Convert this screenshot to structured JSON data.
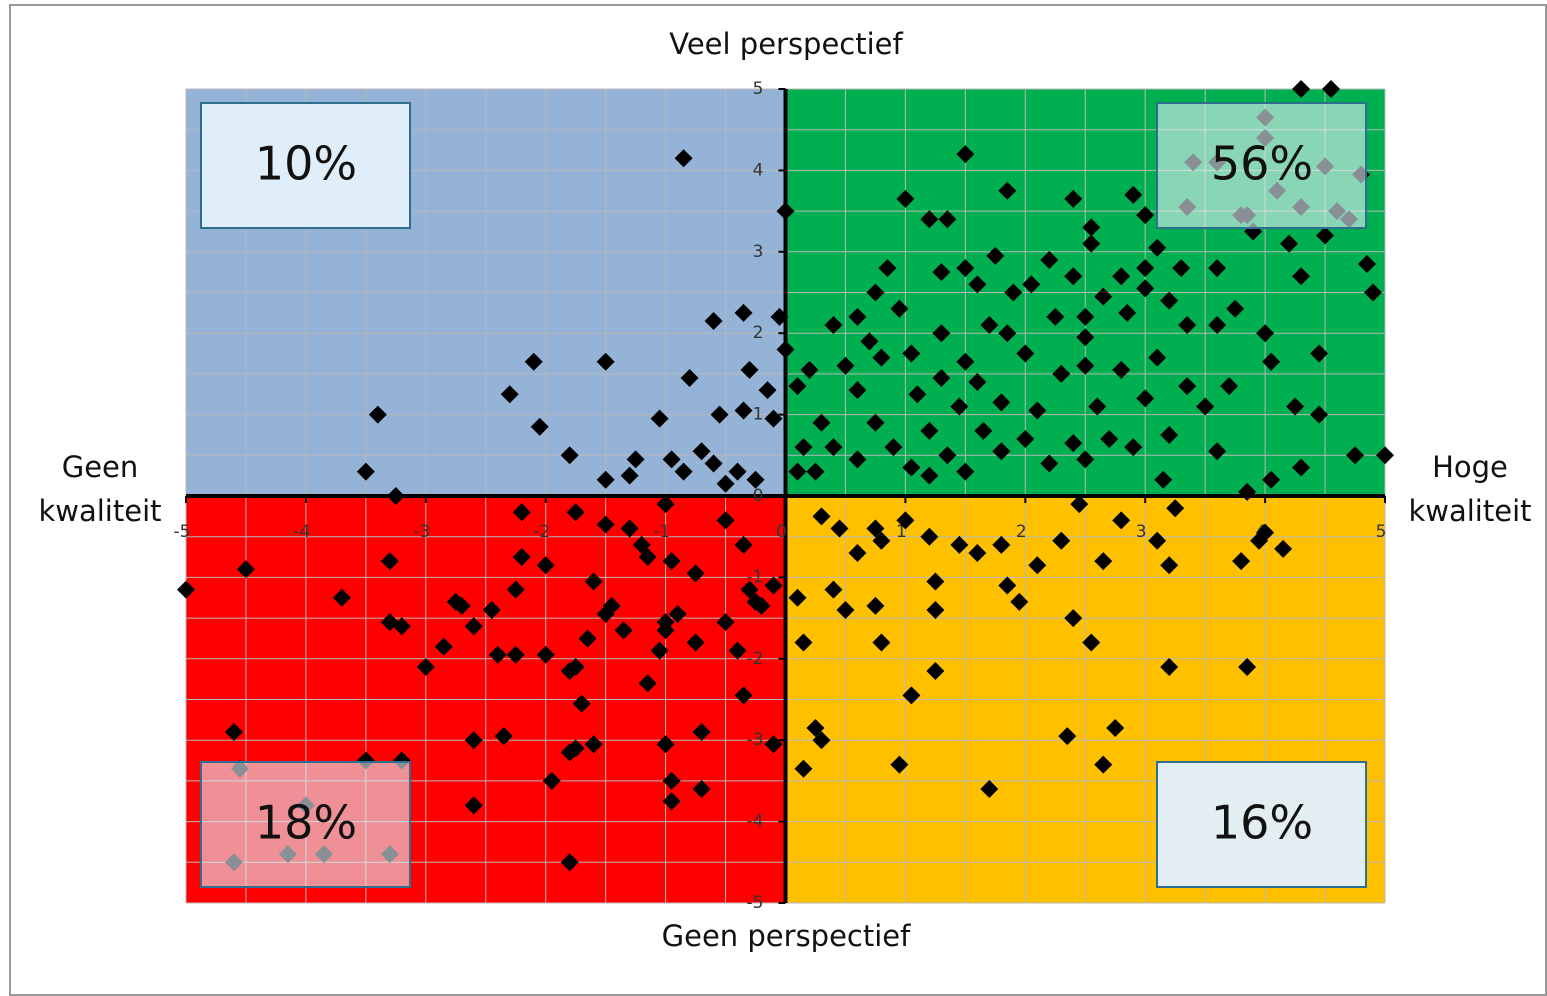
{
  "chart_data": {
    "type": "scatter",
    "top_label": "Veel perspectief",
    "bottom_label": "Geen perspectief",
    "left_label": [
      "Geen",
      "kwaliteit"
    ],
    "right_label": [
      "Hoge",
      "kwaliteit"
    ],
    "quadrant_labels": {
      "top_left": "10%",
      "top_right": "56%",
      "bottom_left": "18%",
      "bottom_right": "16%"
    },
    "quadrant_colors": {
      "top_left": "#95b3d7",
      "top_right": "#00b050",
      "bottom_left": "#ff0000",
      "bottom_right": "#ffc000"
    },
    "color": "#000000",
    "grid": true,
    "xlim": [
      -5,
      5
    ],
    "ylim": [
      -5,
      5
    ],
    "xticks": [
      -5,
      -4,
      -3,
      -2,
      -1,
      0,
      1,
      2,
      3,
      4,
      5
    ],
    "yticks": [
      -5,
      -4,
      -3,
      -2,
      -1,
      0,
      1,
      2,
      3,
      4,
      5
    ],
    "x": [
      -0.85,
      -1.5,
      -2.1,
      -2.3,
      -2.05,
      -1.8,
      -3.4,
      -3.5,
      -3.25,
      -0.8,
      -0.6,
      -0.35,
      -0.3,
      -0.55,
      -1.05,
      -0.7,
      -0.95,
      -1.25,
      -1.5,
      -0.05,
      0,
      -0.35,
      -0.15,
      -0.4,
      -0.25,
      -1.3,
      -0.85,
      -0.5,
      -0.6,
      -0.1,
      4.3,
      4.55,
      4,
      4,
      1.5,
      3.4,
      3.6,
      4.1,
      4.3,
      4.8,
      4.5,
      1.85,
      1.0,
      2.4,
      3.35,
      3.8,
      4.7,
      4.6,
      3.85,
      1.2,
      1.35,
      2.9,
      3.0,
      4.5,
      4.2,
      3.9,
      2.55,
      2.55,
      3.1,
      1.75,
      0.85,
      1.3,
      1.5,
      2.2,
      2.8,
      3.0,
      3.3,
      3.6,
      4.3,
      4.85,
      4.9,
      0.75,
      1.6,
      1.9,
      2.05,
      2.4,
      2.65,
      3.0,
      0.95,
      1.7,
      2.25,
      2.5,
      2.85,
      3.2,
      3.75,
      0.6,
      0.4,
      1.3,
      1.85,
      2.5,
      3.35,
      3.6,
      4.0,
      4.05,
      4.45,
      0.7,
      0.8,
      1.05,
      1.5,
      2.0,
      2.5,
      3.1,
      0.2,
      0.5,
      1.3,
      1.6,
      2.3,
      2.8,
      3.35,
      3.7,
      0.1,
      0.6,
      1.1,
      1.45,
      1.8,
      2.1,
      2.6,
      3.0,
      3.5,
      4.25,
      4.45,
      0.3,
      0.75,
      1.2,
      1.65,
      2.0,
      2.4,
      2.7,
      3.2,
      0.4,
      0.9,
      1.35,
      1.8,
      2.2,
      2.9,
      3.6,
      4.75,
      5,
      0.25,
      0.6,
      1.05,
      1.5,
      2.5,
      3.15,
      3.85,
      4.05,
      4.3,
      0.15,
      1.2,
      0.0,
      0.1,
      -5,
      -4.5,
      -3.7,
      -3.3,
      -3.3,
      -3.2,
      -3.0,
      -2.85,
      -2.75,
      -2.7,
      -2.6,
      -2.45,
      -2.4,
      -2.25,
      -2.25,
      -2.2,
      -2.2,
      -2.0,
      -2.0,
      -1.8,
      -1.75,
      -1.7,
      -1.65,
      -1.6,
      -1.5,
      -1.45,
      -1.35,
      -1.3,
      -1.2,
      -1.15,
      -1.15,
      -1.05,
      -1.0,
      -1.0,
      -0.95,
      -0.9,
      -0.75,
      -0.75,
      -0.5,
      -0.4,
      -0.35,
      -0.35,
      -0.3,
      -0.25,
      -0.2,
      -4.6,
      -3.2,
      -2.6,
      -2.35,
      -2.6,
      -1.95,
      -1.8,
      -1.75,
      -1.6,
      -1.8,
      -1.0,
      -0.95,
      -0.95,
      -0.7,
      -0.7,
      -0.1,
      -1.75,
      -0.5,
      -1.0,
      -1.5,
      -4.6,
      -4.15,
      -3.85,
      -3.3,
      -4.0,
      -3.5,
      -4.55,
      0.1,
      0.4,
      0.5,
      0.75,
      0.8,
      0.15,
      1.05,
      1.25,
      1.25,
      1.25,
      0.25,
      0.3,
      0.15,
      0.95,
      1.7,
      2.35,
      2.65,
      2.75,
      2.55,
      2.4,
      3.2,
      3.85,
      1.85,
      1.95,
      2.1,
      2.65,
      3.2,
      3.8,
      3.95,
      4.15,
      0.3,
      0.45,
      0.6,
      0.8,
      1.0,
      1.2,
      1.45,
      1.6,
      1.8,
      2.3,
      2.45,
      2.8,
      3.1,
      3.25,
      4.0,
      0.75,
      -0.1
    ],
    "values": [
      4.15,
      1.65,
      1.65,
      1.25,
      0.85,
      0.5,
      1.0,
      0.3,
      0,
      1.45,
      2.15,
      2.25,
      1.55,
      1.0,
      0.95,
      0.55,
      0.45,
      0.45,
      0.2,
      2.2,
      3.5,
      1.05,
      1.3,
      0.3,
      0.2,
      0.25,
      0.3,
      0.15,
      0.4,
      0.95,
      5,
      5,
      4.65,
      4.4,
      4.2,
      4.1,
      4.1,
      3.75,
      3.55,
      3.95,
      4.05,
      3.75,
      3.65,
      3.65,
      3.55,
      3.45,
      3.4,
      3.5,
      3.45,
      3.4,
      3.4,
      3.7,
      3.45,
      3.2,
      3.1,
      3.25,
      3.3,
      3.1,
      3.05,
      2.95,
      2.8,
      2.75,
      2.8,
      2.9,
      2.7,
      2.8,
      2.8,
      2.8,
      2.7,
      2.85,
      2.5,
      2.5,
      2.6,
      2.5,
      2.6,
      2.7,
      2.45,
      2.55,
      2.3,
      2.1,
      2.2,
      2.2,
      2.25,
      2.4,
      2.3,
      2.2,
      2.1,
      2.0,
      2.0,
      1.95,
      2.1,
      2.1,
      2.0,
      1.65,
      1.75,
      1.9,
      1.7,
      1.75,
      1.65,
      1.75,
      1.6,
      1.7,
      1.55,
      1.6,
      1.45,
      1.4,
      1.5,
      1.55,
      1.35,
      1.35,
      1.35,
      1.3,
      1.25,
      1.1,
      1.15,
      1.05,
      1.1,
      1.2,
      1.1,
      1.1,
      1.0,
      0.9,
      0.9,
      0.8,
      0.8,
      0.7,
      0.65,
      0.7,
      0.75,
      0.6,
      0.6,
      0.5,
      0.55,
      0.4,
      0.6,
      0.55,
      0.5,
      0.5,
      0.3,
      0.45,
      0.35,
      0.3,
      0.45,
      0.2,
      0.05,
      0.2,
      0.35,
      0.6,
      0.25,
      1.8,
      0.3,
      -1.15,
      -0.9,
      -1.25,
      -0.8,
      -1.55,
      -1.6,
      -2.1,
      -1.85,
      -1.3,
      -1.35,
      -1.6,
      -1.4,
      -1.95,
      -1.95,
      -1.15,
      -0.75,
      -0.2,
      -1.95,
      -0.85,
      -2.15,
      -2.1,
      -2.55,
      -1.75,
      -1.05,
      -1.45,
      -1.35,
      -1.65,
      -0.4,
      -0.6,
      -0.75,
      -2.3,
      -1.9,
      -1.55,
      -1.65,
      -0.8,
      -1.45,
      -1.8,
      -0.95,
      -1.55,
      -1.9,
      -2.45,
      -0.6,
      -1.15,
      -1.3,
      -1.35,
      -2.9,
      -3.25,
      -3.0,
      -2.95,
      -3.8,
      -3.5,
      -3.15,
      -3.1,
      -3.05,
      -4.5,
      -3.05,
      -3.5,
      -3.75,
      -3.6,
      -2.9,
      -1.1,
      -0.2,
      -0.3,
      -0.1,
      -0.35,
      -4.5,
      -4.4,
      -4.4,
      -4.4,
      -3.8,
      -3.25,
      -3.35,
      -1.25,
      -1.15,
      -1.4,
      -1.35,
      -1.8,
      -1.8,
      -2.45,
      -2.15,
      -1.4,
      -1.05,
      -2.85,
      -3.0,
      -3.35,
      -3.3,
      -3.6,
      -2.95,
      -3.3,
      -2.85,
      -1.8,
      -1.5,
      -2.1,
      -2.1,
      -1.1,
      -1.3,
      -0.85,
      -0.8,
      -0.85,
      -0.8,
      -0.55,
      -0.65,
      -0.25,
      -0.4,
      -0.7,
      -0.55,
      -0.3,
      -0.5,
      -0.6,
      -0.7,
      -0.6,
      -0.55,
      -0.1,
      -0.3,
      -0.55,
      -0.15,
      -0.45,
      -0.4,
      -3.05
    ]
  }
}
